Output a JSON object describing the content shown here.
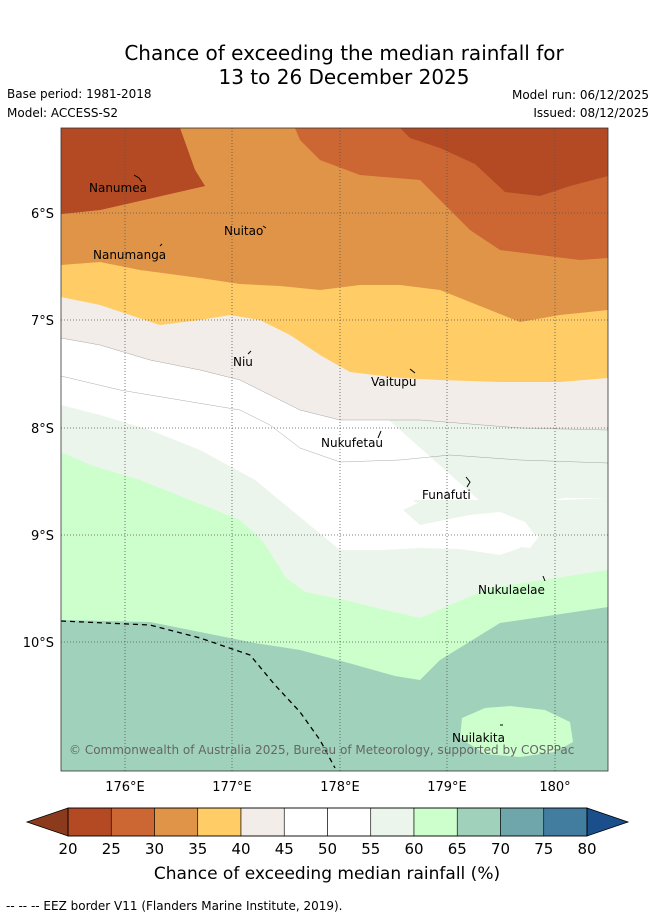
{
  "title": {
    "line1": "Chance of exceeding the median rainfall for",
    "line2": "13 to 26 December 2025"
  },
  "meta": {
    "base_period": "Base period: 1981-2018",
    "model": "Model: ACCESS-S2",
    "model_run": "Model run: 06/12/2025",
    "issued": "Issued: 08/12/2025"
  },
  "map": {
    "lat_labels": [
      "6°S",
      "7°S",
      "8°S",
      "9°S",
      "10°S"
    ],
    "lon_labels": [
      "176°E",
      "177°E",
      "178°E",
      "179°E",
      "180°"
    ],
    "places": [
      {
        "name": "Nanumea"
      },
      {
        "name": "Nuitao"
      },
      {
        "name": "Nanumanga"
      },
      {
        "name": "Niu"
      },
      {
        "name": "Vaitupu"
      },
      {
        "name": "Nukufetau"
      },
      {
        "name": "Funafuti"
      },
      {
        "name": "Nukulaelae"
      },
      {
        "name": "Nuilakita"
      }
    ],
    "copyright": "© Commonwealth of Australia 2025, Bureau of Meteorology, supported by COSPPac"
  },
  "colorbar": {
    "ticks": [
      "20",
      "25",
      "30",
      "35",
      "40",
      "45",
      "50",
      "55",
      "60",
      "65",
      "70",
      "75",
      "80"
    ],
    "colors": [
      "#b34a24",
      "#cc6633",
      "#e09448",
      "#ffcc66",
      "#f2ede8",
      "#ffffff",
      "#ffffff",
      "#ebf5eb",
      "#ccffcc",
      "#a0d2bb",
      "#6fa6ab",
      "#427da0"
    ],
    "under_color": "#8c3a1c",
    "over_color": "#1a4f8c",
    "label": "Chance of exceeding median rainfall (%)"
  },
  "footer": {
    "note": "--  --  -- EEZ border V11 (Flanders Marine Institute, 2019)."
  }
}
